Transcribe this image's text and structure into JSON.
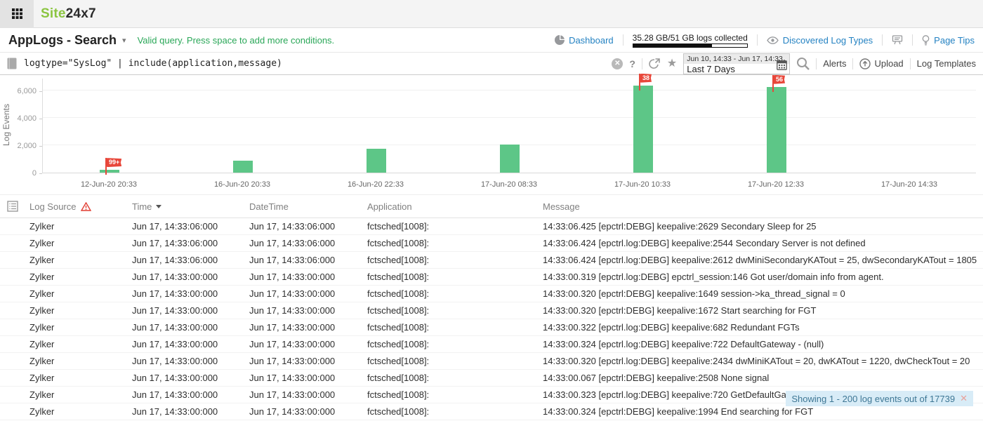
{
  "topbar": {
    "logo_site": "Site",
    "logo_suffix": "24x7"
  },
  "header": {
    "title": "AppLogs - Search",
    "title_caret": "▾",
    "query_status": "Valid query. Press space to add more conditions.",
    "dashboard_label": "Dashboard",
    "usage_text": "35.28 GB/51 GB logs collected",
    "usage_percent": 69,
    "discovered_label": "Discovered Log Types",
    "page_tips_label": "Page Tips"
  },
  "searchbar": {
    "query": "logtype=\"SysLog\" | include(application,message)",
    "help_label": "?",
    "star": "★",
    "date_range": "Jun 10, 14:33 - Jun 17, 14:33",
    "date_preset": "Last 7 Days",
    "alerts_label": "Alerts",
    "upload_label": "Upload",
    "log_templates_label": "Log Templates"
  },
  "chart_data": {
    "type": "bar",
    "title": "",
    "xlabel": "",
    "ylabel": "Log Events",
    "categories": [
      "12-Jun-20 20:33",
      "16-Jun-20 20:33",
      "16-Jun-20 22:33",
      "17-Jun-20 08:33",
      "17-Jun-20 10:33",
      "17-Jun-20 12:33",
      "17-Jun-20 14:33"
    ],
    "values": [
      200,
      850,
      1750,
      2050,
      6350,
      6250,
      0
    ],
    "yticks": [
      0,
      2000,
      4000,
      6000
    ],
    "ytick_labels": [
      "0",
      "2,000",
      "4,000",
      "6,000"
    ],
    "ylim": [
      0,
      6900
    ],
    "grid": true,
    "legend": false,
    "bar_color": "#5dc687",
    "flag_color": "#e8473a",
    "flags": [
      {
        "index": 0,
        "label": "99+"
      },
      {
        "index": 4,
        "label": "38"
      },
      {
        "index": 5,
        "label": "56"
      }
    ]
  },
  "table": {
    "columns": [
      "Log Source",
      "Time",
      "DateTime",
      "Application",
      "Message"
    ],
    "sorted_column": "Time",
    "rows": [
      {
        "log_source": "Zylker",
        "time": "Jun 17, 14:33:06:000",
        "datetime": "Jun 17, 14:33:06:000",
        "application": "fctsched[1008]:",
        "message": "14:33:06.425 [epctrl:DEBG] keepalive:2629 Secondary Sleep for 25"
      },
      {
        "log_source": "Zylker",
        "time": "Jun 17, 14:33:06:000",
        "datetime": "Jun 17, 14:33:06:000",
        "application": "fctsched[1008]:",
        "message": "14:33:06.424 [epctrl.log:DEBG] keepalive:2544 Secondary Server is not defined"
      },
      {
        "log_source": "Zylker",
        "time": "Jun 17, 14:33:06:000",
        "datetime": "Jun 17, 14:33:06:000",
        "application": "fctsched[1008]:",
        "message": "14:33:06.424 [epctrl.log:DEBG] keepalive:2612 dwMiniSecondaryKATout = 25, dwSecondaryKATout = 1805"
      },
      {
        "log_source": "Zylker",
        "time": "Jun 17, 14:33:00:000",
        "datetime": "Jun 17, 14:33:00:000",
        "application": "fctsched[1008]:",
        "message": "14:33:00.319 [epctrl.log:DEBG] epctrl_session:146 Got user/domain info from agent."
      },
      {
        "log_source": "Zylker",
        "time": "Jun 17, 14:33:00:000",
        "datetime": "Jun 17, 14:33:00:000",
        "application": "fctsched[1008]:",
        "message": "14:33:00.320 [epctrl:DEBG] keepalive:1649 session->ka_thread_signal = 0"
      },
      {
        "log_source": "Zylker",
        "time": "Jun 17, 14:33:00:000",
        "datetime": "Jun 17, 14:33:00:000",
        "application": "fctsched[1008]:",
        "message": "14:33:00.320 [epctrl:DEBG] keepalive:1672 Start searching for FGT"
      },
      {
        "log_source": "Zylker",
        "time": "Jun 17, 14:33:00:000",
        "datetime": "Jun 17, 14:33:00:000",
        "application": "fctsched[1008]:",
        "message": "14:33:00.322 [epctrl.log:DEBG] keepalive:682 Redundant FGTs"
      },
      {
        "log_source": "Zylker",
        "time": "Jun 17, 14:33:00:000",
        "datetime": "Jun 17, 14:33:00:000",
        "application": "fctsched[1008]:",
        "message": "14:33:00.324 [epctrl.log:DEBG] keepalive:722 DefaultGateway - (null)"
      },
      {
        "log_source": "Zylker",
        "time": "Jun 17, 14:33:00:000",
        "datetime": "Jun 17, 14:33:00:000",
        "application": "fctsched[1008]:",
        "message": "14:33:00.320 [epctrl.log:DEBG] keepalive:2434 dwMiniKATout = 20, dwKATout = 1220, dwCheckTout = 20"
      },
      {
        "log_source": "Zylker",
        "time": "Jun 17, 14:33:00:000",
        "datetime": "Jun 17, 14:33:00:000",
        "application": "fctsched[1008]:",
        "message": "14:33:00.067 [epctrl:DEBG] keepalive:2508 None signal"
      },
      {
        "log_source": "Zylker",
        "time": "Jun 17, 14:33:00:000",
        "datetime": "Jun 17, 14:33:00:000",
        "application": "fctsched[1008]:",
        "message": "14:33:00.323 [epctrl.log:DEBG] keepalive:720 GetDefaultGateway"
      },
      {
        "log_source": "Zylker",
        "time": "Jun 17, 14:33:00:000",
        "datetime": "Jun 17, 14:33:00:000",
        "application": "fctsched[1008]:",
        "message": "14:33:00.324 [epctrl:DEBG] keepalive:1994 End searching for FGT"
      }
    ]
  },
  "toast": {
    "text": "Showing 1 - 200 log events out of 17739",
    "close": "✕"
  }
}
